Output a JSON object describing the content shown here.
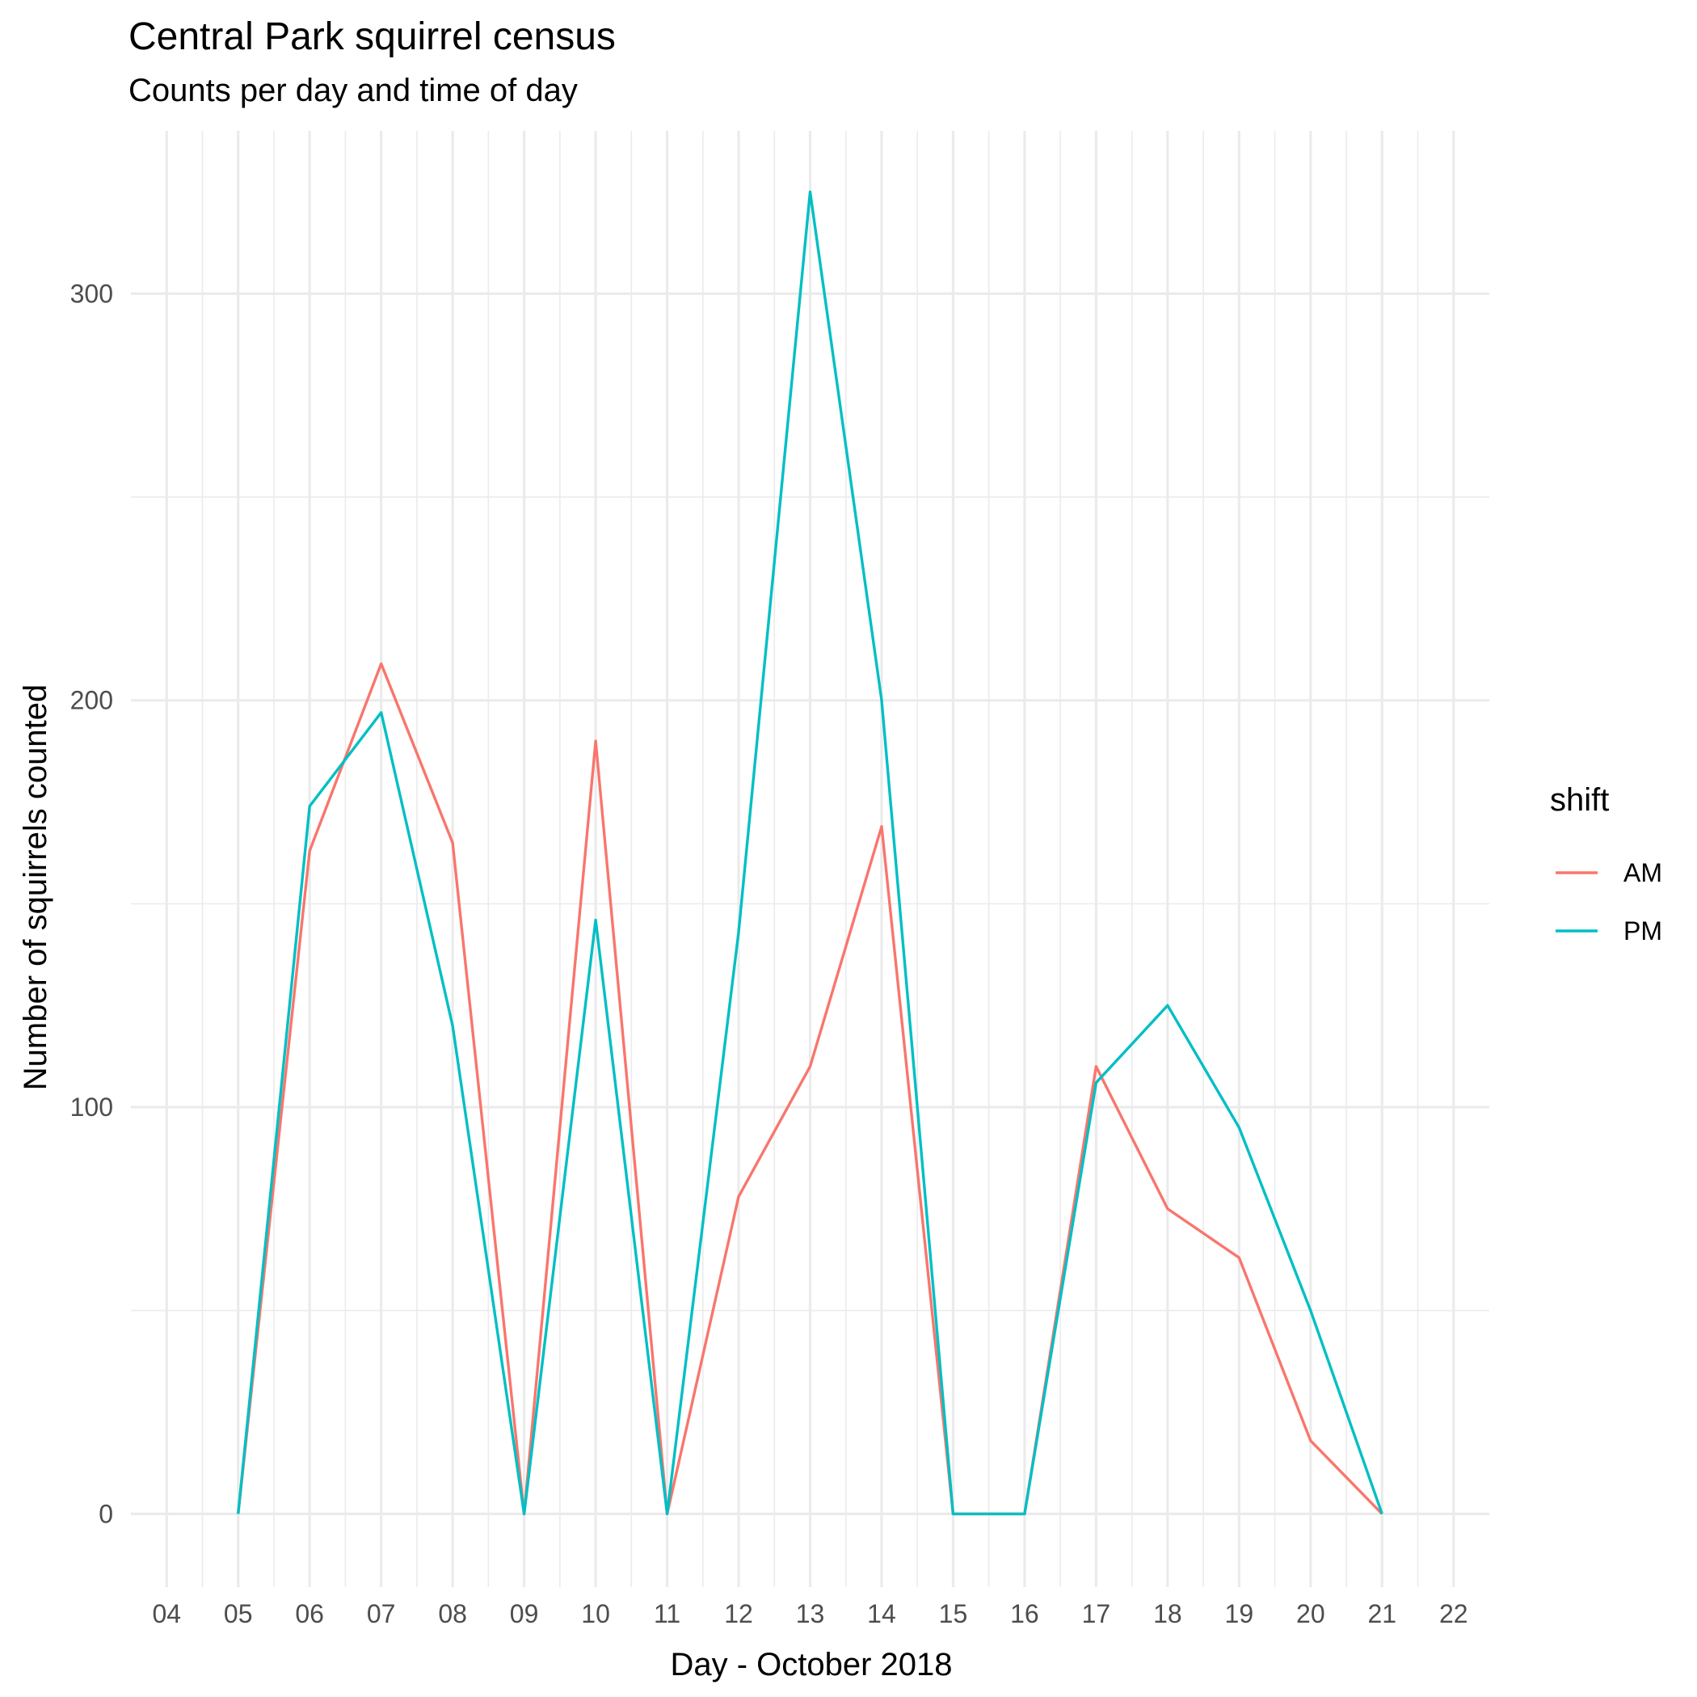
{
  "chart_data": {
    "type": "line",
    "title": "Central Park squirrel census",
    "subtitle": "Counts per day and time of day",
    "xlabel": "Day - October 2018",
    "ylabel": "Number of squirrels counted",
    "x_ticks": [
      "04",
      "05",
      "06",
      "07",
      "08",
      "09",
      "10",
      "11",
      "12",
      "13",
      "14",
      "15",
      "16",
      "17",
      "18",
      "19",
      "20",
      "21",
      "22"
    ],
    "xlim": [
      3.5,
      22.5
    ],
    "y_ticks": [
      0,
      100,
      200,
      300
    ],
    "ylim": [
      -18,
      340
    ],
    "grid": true,
    "legend": {
      "title": "shift",
      "position": "right"
    },
    "series": [
      {
        "name": "AM",
        "color": "#F8766D",
        "x": [
          5,
          6,
          7,
          8,
          9,
          10,
          11,
          12,
          13,
          14,
          15,
          16,
          17,
          18,
          19,
          20,
          21
        ],
        "y": [
          0,
          163,
          209,
          165,
          0,
          190,
          0,
          78,
          110,
          169,
          0,
          0,
          110,
          75,
          63,
          18,
          0
        ]
      },
      {
        "name": "PM",
        "color": "#00BFC4",
        "x": [
          5,
          6,
          7,
          8,
          9,
          10,
          11,
          12,
          13,
          14,
          15,
          16,
          17,
          18,
          19,
          20,
          21
        ],
        "y": [
          0,
          174,
          197,
          120,
          0,
          146,
          0,
          143,
          325,
          200,
          0,
          0,
          106,
          125,
          95,
          50,
          0
        ]
      }
    ]
  }
}
